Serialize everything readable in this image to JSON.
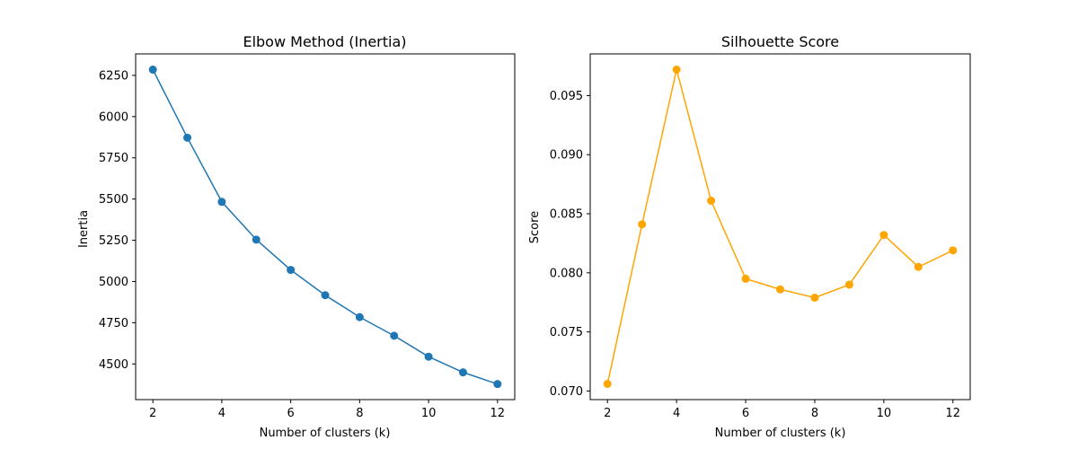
{
  "chart_data": [
    {
      "type": "line",
      "title": "Elbow Method (Inertia)",
      "xlabel": "Number of clusters (k)",
      "ylabel": "Inertia",
      "x": [
        2,
        3,
        4,
        5,
        6,
        7,
        8,
        9,
        10,
        11,
        12
      ],
      "series": [
        {
          "values": [
            6285,
            5872,
            5483,
            5254,
            5070,
            4917,
            4784,
            4671,
            4544,
            4449,
            4378
          ],
          "color": "#1f77b4"
        }
      ],
      "xticks": [
        2,
        4,
        6,
        8,
        10,
        12
      ],
      "xtick_labels": [
        "2",
        "4",
        "6",
        "8",
        "10",
        "12"
      ],
      "yticks": [
        4500,
        4750,
        5000,
        5250,
        5500,
        5750,
        6000,
        6250
      ],
      "ytick_labels": [
        "4500",
        "4750",
        "5000",
        "5250",
        "5500",
        "5750",
        "6000",
        "6250"
      ],
      "xlim": [
        1.5,
        12.5
      ],
      "ylim": [
        4283.65,
        6380.35
      ],
      "grid": false,
      "marker": "circle"
    },
    {
      "type": "line",
      "title": "Silhouette Score",
      "xlabel": "Number of clusters (k)",
      "ylabel": "Score",
      "x": [
        2,
        3,
        4,
        5,
        6,
        7,
        8,
        9,
        10,
        11,
        12
      ],
      "series": [
        {
          "values": [
            0.0706,
            0.0841,
            0.0972,
            0.0861,
            0.0795,
            0.0786,
            0.0779,
            0.079,
            0.0832,
            0.0805,
            0.0819
          ],
          "color": "#ffa500"
        }
      ],
      "xticks": [
        2,
        4,
        6,
        8,
        10,
        12
      ],
      "xtick_labels": [
        "2",
        "4",
        "6",
        "8",
        "10",
        "12"
      ],
      "yticks": [
        0.07,
        0.075,
        0.08,
        0.085,
        0.09,
        0.095
      ],
      "ytick_labels": [
        "0.070",
        "0.075",
        "0.080",
        "0.085",
        "0.090",
        "0.095"
      ],
      "xlim": [
        1.5,
        12.5
      ],
      "ylim": [
        0.06927,
        0.09853
      ],
      "grid": false,
      "marker": "circle"
    }
  ]
}
